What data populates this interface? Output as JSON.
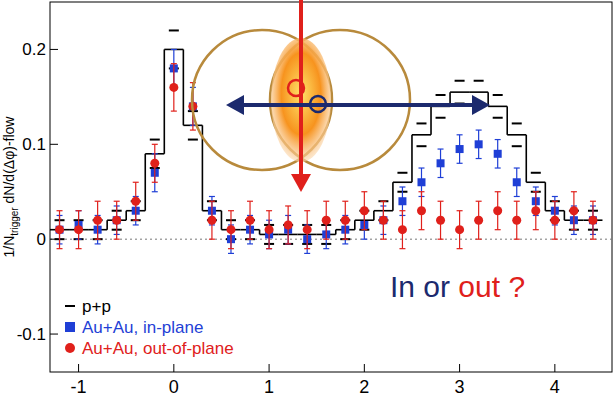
{
  "chart_data": {
    "type": "scatter",
    "y_label": {
      "main": "1/N",
      "sub": "trigger",
      "rest": " dN/d(Δφ)-flow"
    },
    "annotation": [
      {
        "text": "In or",
        "color": "#1c2a6e"
      },
      {
        "text": "out ?",
        "color": "#e0201b"
      }
    ],
    "x": [
      -1.2,
      -1.0,
      -0.8,
      -0.6,
      -0.4,
      -0.2,
      0,
      0.2,
      0.4,
      0.6,
      0.8,
      1.0,
      1.2,
      1.4,
      1.6,
      1.8,
      2.0,
      2.2,
      2.4,
      2.6,
      2.8,
      3.0,
      3.2,
      3.4,
      3.6,
      3.8,
      4.0,
      4.2,
      4.4
    ],
    "series": [
      {
        "name": "p+p",
        "color": "#000000",
        "type": "step",
        "marker": "dash",
        "values": [
          0.01,
          0.01,
          0.01,
          0.02,
          0.03,
          0.09,
          0.2,
          0.12,
          0.03,
          0.01,
          0.01,
          0.005,
          0.005,
          0.005,
          0.005,
          0.01,
          0.02,
          0.03,
          0.06,
          0.11,
          0.14,
          0.155,
          0.155,
          0.14,
          0.11,
          0.06,
          0.03,
          0.02,
          0.02
        ],
        "errors": [
          0.01,
          0.01,
          0.01,
          0.01,
          0.01,
          0.015,
          0.02,
          0.015,
          0.01,
          0.01,
          0.01,
          0.01,
          0.01,
          0.01,
          0.01,
          0.01,
          0.01,
          0.01,
          0.01,
          0.012,
          0.012,
          0.012,
          0.012,
          0.012,
          0.012,
          0.01,
          0.01,
          0.01,
          0.01
        ]
      },
      {
        "name": "Au+Au, in-plane",
        "color": "#1f3fd6",
        "type": "scatter",
        "marker": "square",
        "values": [
          0.01,
          0.015,
          0.01,
          0.02,
          0.03,
          0.07,
          0.18,
          0.14,
          0.03,
          0.0,
          0.01,
          0.005,
          0.01,
          0.0,
          0.005,
          0.01,
          0.015,
          0.02,
          0.04,
          0.06,
          0.08,
          0.095,
          0.1,
          0.09,
          0.06,
          0.04,
          0.03,
          0.02,
          0.02
        ],
        "errors": [
          0.015,
          0.015,
          0.015,
          0.015,
          0.015,
          0.02,
          0.02,
          0.02,
          0.015,
          0.015,
          0.015,
          0.015,
          0.015,
          0.015,
          0.015,
          0.015,
          0.015,
          0.015,
          0.015,
          0.015,
          0.015,
          0.015,
          0.015,
          0.015,
          0.015,
          0.015,
          0.015,
          0.015,
          0.015
        ]
      },
      {
        "name": "Au+Au, out-of-plane",
        "color": "#e0201b",
        "type": "scatter",
        "marker": "circle",
        "values": [
          0.01,
          0.01,
          0.02,
          0.02,
          0.04,
          0.08,
          0.16,
          0.14,
          0.02,
          0.01,
          0.02,
          0.01,
          0.015,
          0.01,
          0.02,
          0.02,
          0.03,
          0.02,
          0.01,
          0.03,
          0.02,
          0.01,
          0.02,
          0.03,
          0.02,
          0.03,
          0.02,
          0.03,
          0.02
        ],
        "errors": [
          0.02,
          0.02,
          0.02,
          0.02,
          0.02,
          0.02,
          0.025,
          0.025,
          0.02,
          0.02,
          0.02,
          0.02,
          0.02,
          0.02,
          0.02,
          0.02,
          0.02,
          0.02,
          0.02,
          0.02,
          0.02,
          0.02,
          0.02,
          0.02,
          0.02,
          0.02,
          0.02,
          0.02,
          0.02
        ]
      }
    ],
    "xlim": [
      -1.3,
      4.6
    ],
    "xticks": [
      -1,
      0,
      1,
      2,
      3,
      4
    ],
    "ylim": [
      -0.14,
      0.25
    ],
    "yticks": [
      -0.1,
      0,
      0.1,
      0.2
    ],
    "grid": false,
    "legend": "lower left"
  }
}
